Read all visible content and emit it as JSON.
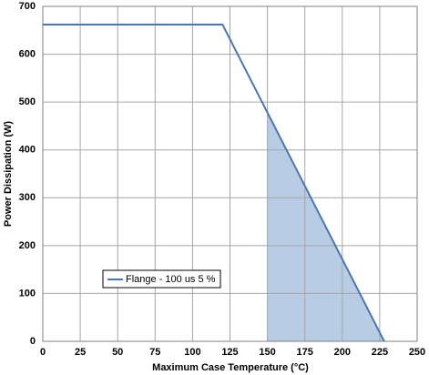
{
  "chart_data": {
    "type": "line",
    "x_label": "Maximum Case Temperature (°C)",
    "y_label": "Power Dissipation (W)",
    "series": [
      {
        "name": "Flange - 100 us 5 %",
        "color": "#4a76b5",
        "x": [
          0,
          120,
          228
        ],
        "values": [
          662,
          662,
          0
        ]
      }
    ],
    "shaded_area": {
      "color": "#b8cce4",
      "x": [
        150,
        228
      ],
      "values": [
        478,
        0
      ]
    },
    "xlim": [
      0,
      250
    ],
    "xticks": [
      0,
      25,
      50,
      75,
      100,
      125,
      150,
      175,
      200,
      225,
      250
    ],
    "ylim": [
      0,
      700
    ],
    "yticks": [
      0,
      100,
      200,
      300,
      400,
      500,
      600,
      700
    ],
    "grid": true,
    "legend": "lower-left"
  }
}
